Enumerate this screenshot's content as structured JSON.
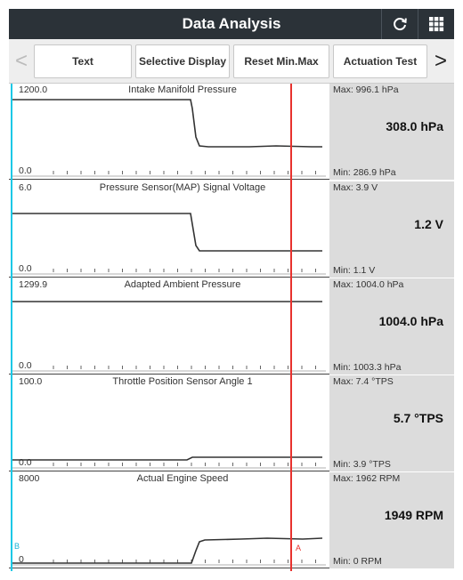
{
  "header": {
    "title": "Data Analysis",
    "icons": [
      "refresh-icon",
      "grid-menu-icon"
    ]
  },
  "toolbar": {
    "prev_arrow": "<",
    "next_arrow": ">",
    "buttons": {
      "text": "Text",
      "selective_display": "Selective Display",
      "reset_min_max": "Reset Min.Max",
      "actuation_test": "Actuation Test"
    }
  },
  "colors": {
    "titlebar": "#2b3238",
    "cursor_a": "#e8322e",
    "cursor_b": "#19c8e6",
    "value_box": "#dcdcdc"
  },
  "cursors": {
    "a_label": "A",
    "b_label": "B"
  },
  "panels": [
    {
      "name": "Intake Manifold Pressure",
      "scale_max": "1200.0",
      "scale_min": "0.0",
      "max": "Max: 996.1 hPa",
      "min": "Min: 286.9 hPa",
      "current": "308.0 hPa"
    },
    {
      "name": "Pressure Sensor(MAP) Signal Voltage",
      "scale_max": "6.0",
      "scale_min": "0.0",
      "max": "Max: 3.9  V",
      "min": "Min: 1.1 V",
      "current": "1.2 V"
    },
    {
      "name": "Adapted Ambient Pressure",
      "scale_max": "1299.9",
      "scale_min": "0.0",
      "max": "Max: 1004.0 hPa",
      "min": "Min: 1003.3 hPa",
      "current": "1004.0 hPa"
    },
    {
      "name": "Throttle Position Sensor Angle 1",
      "scale_max": "100.0",
      "scale_min": "0.0",
      "max": "Max: 7.4 °TPS",
      "min": "Min: 3.9 °TPS",
      "current": "5.7 °TPS"
    },
    {
      "name": "Actual Engine Speed",
      "scale_max": "8000",
      "scale_min": "0",
      "max": "Max: 1962 RPM",
      "min": "Min: 0 RPM",
      "current": "1949 RPM"
    }
  ]
}
